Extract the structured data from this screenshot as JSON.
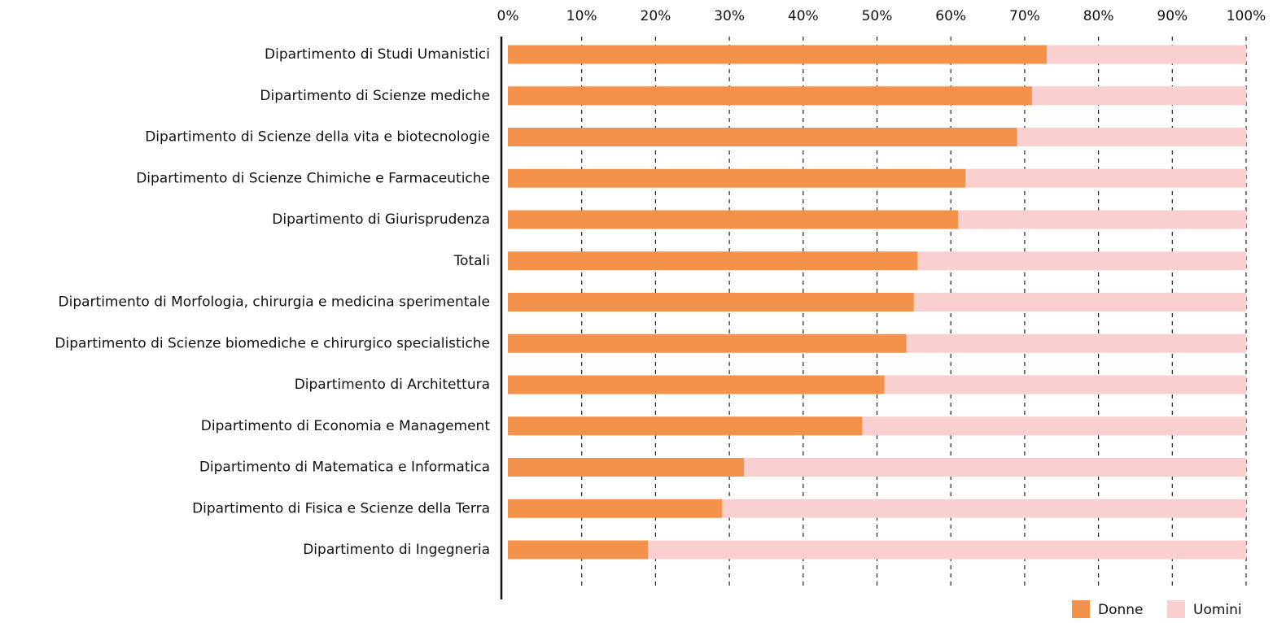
{
  "chart_data": {
    "type": "stacked-bar-horizontal",
    "categories": [
      "Dipartimento di Studi Umanistici",
      "Dipartimento di Scienze mediche",
      "Dipartimento di Scienze della vita e biotecnologie",
      "Dipartimento di Scienze Chimiche e Farmaceutiche",
      "Dipartimento di Giurisprudenza",
      "Totali",
      "Dipartimento di Morfologia, chirurgia e medicina sperimentale",
      "Dipartimento di Scienze biomediche e chirurgico specialistiche",
      "Dipartimento di Architettura",
      "Dipartimento di Economia e Management",
      "Dipartimento di Matematica e Informatica",
      "Dipartimento di Fisica e Scienze della Terra",
      "Dipartimento di Ingegneria"
    ],
    "series": [
      {
        "name": "Donne",
        "color": "#f4914b",
        "values": [
          73,
          71,
          69,
          62,
          61,
          55.5,
          55,
          54,
          51,
          48,
          32,
          29,
          19
        ]
      },
      {
        "name": "Uomini",
        "color": "#f9cfcf",
        "values": [
          27,
          29,
          31,
          38,
          39,
          44.5,
          45,
          46,
          49,
          52,
          68,
          71,
          81
        ]
      }
    ],
    "xlim": [
      0,
      100
    ],
    "xticks": [
      {
        "value": 0,
        "label": "0%"
      },
      {
        "value": 10,
        "label": "10%"
      },
      {
        "value": 20,
        "label": "20%"
      },
      {
        "value": 30,
        "label": "30%"
      },
      {
        "value": 40,
        "label": "40%"
      },
      {
        "value": 50,
        "label": "50%"
      },
      {
        "value": 60,
        "label": "60%"
      },
      {
        "value": 70,
        "label": "70%"
      },
      {
        "value": 80,
        "label": "80%"
      },
      {
        "value": 90,
        "label": "90%"
      },
      {
        "value": 100,
        "label": "100%"
      }
    ],
    "grid": true,
    "legend": "bottom-right"
  }
}
